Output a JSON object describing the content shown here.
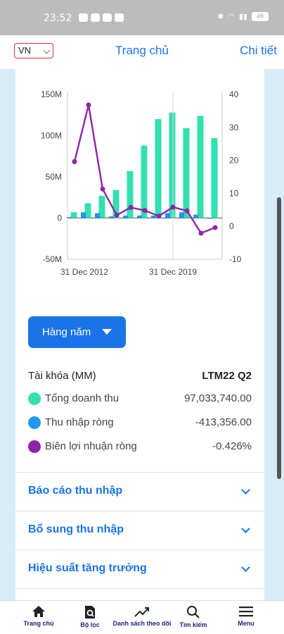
{
  "status_bar": {
    "time": "23:52",
    "battery": "49"
  },
  "header": {
    "language": "VN",
    "title": "Trang chủ",
    "detail_link": "Chi tiết"
  },
  "colors": {
    "revenue": "#33e0b0",
    "net_income": "#2196f3",
    "net_margin": "#8e24aa",
    "accent": "#1a73e8"
  },
  "chart_data": {
    "type": "bar",
    "x": [
      "2012",
      "2013",
      "2014",
      "2015",
      "2016",
      "2017",
      "2018",
      "2019",
      "2020",
      "2021",
      "2022"
    ],
    "series": [
      {
        "name": "Tổng doanh thu",
        "axis": "left",
        "values": [
          7,
          18,
          27,
          34,
          57,
          88,
          120,
          128,
          109,
          124,
          97
        ]
      },
      {
        "name": "Thu nhập ròng",
        "axis": "left",
        "values": [
          1,
          7,
          6,
          2,
          3,
          3,
          3,
          6,
          7,
          4,
          -0.4
        ]
      },
      {
        "name": "Biên lợi nhuận ròng",
        "type": "line",
        "axis": "right",
        "values": [
          19.6,
          36.8,
          11.3,
          3.4,
          5.7,
          4.8,
          3.1,
          5.8,
          4.7,
          -2.1,
          -0.4
        ]
      }
    ],
    "y_left_ticks": [
      "150M",
      "100M",
      "50M",
      "0",
      "-50M"
    ],
    "y_left_range": [
      -50,
      150
    ],
    "y_right_ticks": [
      "40",
      "30",
      "20",
      "10",
      "0",
      "-10"
    ],
    "y_right_range": [
      -10,
      40
    ],
    "x_tick_labels": [
      "31 Dec 2012",
      "31 Dec 2019"
    ],
    "grid": true
  },
  "period_button": "Hàng năm",
  "legend": {
    "header_label": "Tài khóa (MM)",
    "header_period": "LTM22 Q2",
    "rows": [
      {
        "label": "Tổng doanh thu",
        "value": "97,033,740.00"
      },
      {
        "label": "Thu nhập ròng",
        "value": "-413,356.00"
      },
      {
        "label": "Biên lợi nhuận ròng",
        "value": "-0.426%"
      }
    ]
  },
  "sections": [
    "Báo cáo thu nhập",
    "Bổ sung thu nhập",
    "Hiệu suất tăng trưởng"
  ],
  "bottom_nav": [
    "Trang chủ",
    "Bộ lọc",
    "Danh sách theo dõi",
    "Tìm kiếm",
    "Menu"
  ]
}
